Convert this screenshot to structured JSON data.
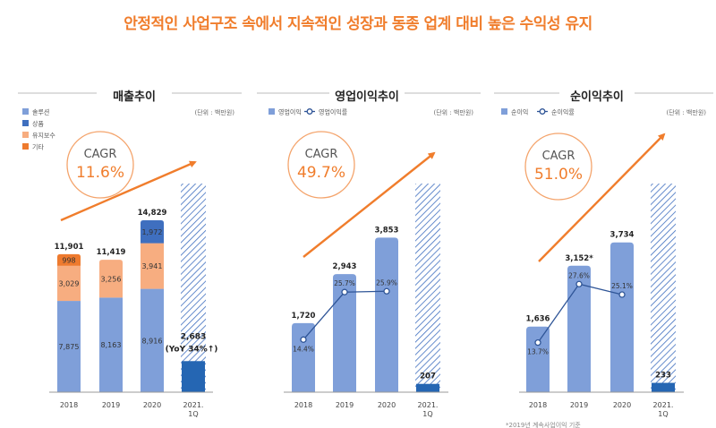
{
  "headline": "안정적인 사업구조 속에서 지속적인 성장과 동종 업계 대비 높은 수익성 유지",
  "colors": {
    "accent": "#f07d2c",
    "bar_blue": "#7f9fd9",
    "bar_dark_blue": "#3f6fbf",
    "bar_light_orange": "#f7ad80",
    "bar_orange": "#ee7a2e",
    "bar_1q": "#2566b3",
    "hatch": "#3f6fbf",
    "line": "#2f5597"
  },
  "chart_data": [
    {
      "type": "bar",
      "stacked": true,
      "title": "매출추이",
      "unit": "(단위 : 백만원)",
      "categories": [
        "2018",
        "2019",
        "2020",
        "2021.\n1Q"
      ],
      "series": [
        {
          "name": "솔루션",
          "values": [
            7875,
            8163,
            8916,
            null
          ]
        },
        {
          "name": "유지보수",
          "values": [
            3029,
            3256,
            3941,
            null
          ]
        },
        {
          "name": "기타",
          "values": [
            998,
            null,
            null,
            null
          ]
        },
        {
          "name": "상품",
          "values": [
            null,
            null,
            1972,
            null
          ]
        }
      ],
      "legend": [
        "솔루션",
        "상품",
        "유지보수",
        "기타"
      ],
      "totals": [
        "11,901",
        "11,419",
        "14,829"
      ],
      "quarter_value": 2683,
      "quarter_label": "2,683",
      "quarter_note": "(YoY 34%↑)",
      "cagr_label": "CAGR",
      "cagr_value": "11.6%",
      "hatched_bar_range": [
        0,
        18000
      ],
      "ylim": [
        0,
        18000
      ]
    },
    {
      "type": "bar",
      "title": "영업이익추이",
      "unit": "(단위 : 백만원)",
      "categories": [
        "2018",
        "2019",
        "2020",
        "2021.\n1Q"
      ],
      "values": [
        1720,
        2943,
        3853,
        207
      ],
      "value_labels": [
        "1,720",
        "2,943",
        "3,853",
        "207"
      ],
      "line_series": {
        "name": "영업이익률",
        "values": [
          14.4,
          25.7,
          25.9
        ],
        "labels": [
          "14.4%",
          "25.7%",
          "25.9%"
        ]
      },
      "legend": [
        "영업이익",
        "영업이익률"
      ],
      "cagr_label": "CAGR",
      "cagr_value": "49.7%",
      "ylim": [
        0,
        5200
      ]
    },
    {
      "type": "bar",
      "title": "순이익추이",
      "unit": "(단위 : 백만원)",
      "categories": [
        "2018",
        "2019",
        "2020",
        "2021.\n1Q"
      ],
      "values": [
        1636,
        3152,
        3734,
        233
      ],
      "value_labels": [
        "1,636",
        "3,152*",
        "3,734",
        "233"
      ],
      "line_series": {
        "name": "순이익률",
        "values": [
          13.7,
          27.6,
          25.1
        ],
        "labels": [
          "13.7%",
          "27.6%",
          "25.1%"
        ]
      },
      "legend": [
        "순이익",
        "순이익률"
      ],
      "cagr_label": "CAGR",
      "cagr_value": "51.0%",
      "ylim": [
        0,
        5200
      ]
    }
  ],
  "footnote": "*2019년 계속사업이익 기준"
}
